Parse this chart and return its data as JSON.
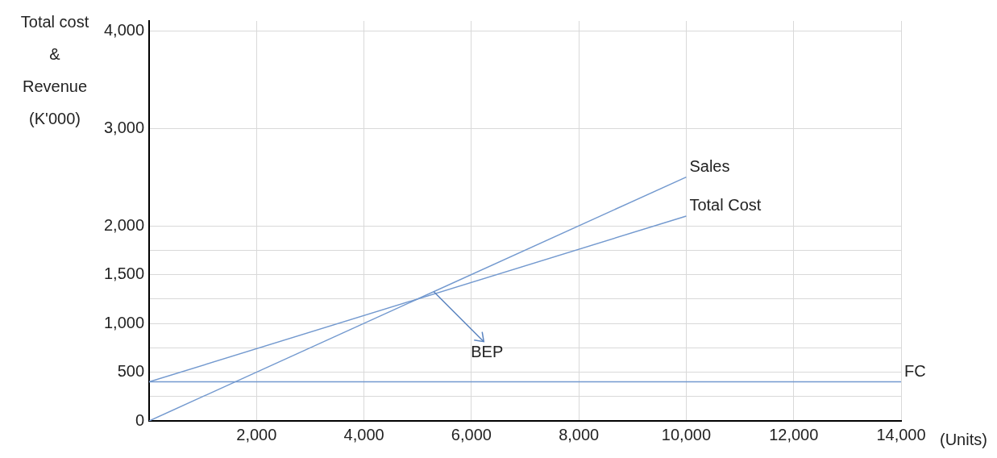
{
  "chart_data": {
    "type": "line",
    "ylabel": "Total cost\n&\nRevenue\n(K'000)",
    "xlabel": "(Units)",
    "xlim": [
      0,
      14000
    ],
    "xticks": [
      {
        "value": 0,
        "label": null
      },
      {
        "value": 2000,
        "label": "2,000"
      },
      {
        "value": 4000,
        "label": "4,000"
      },
      {
        "value": 6000,
        "label": "6,000"
      },
      {
        "value": 8000,
        "label": "8,000"
      },
      {
        "value": 10000,
        "label": "10,000"
      },
      {
        "value": 12000,
        "label": "12,000"
      },
      {
        "value": 14000,
        "label": "14,000"
      }
    ],
    "ylim": [
      0,
      4100
    ],
    "yticks": [
      0,
      {
        "value": 250,
        "label": null
      },
      500,
      {
        "value": 750,
        "label": null
      },
      {
        "value": 1000,
        "label": "1,000"
      },
      {
        "value": 1250,
        "label": null
      },
      {
        "value": 1500,
        "label": "1,500"
      },
      {
        "value": 1750,
        "label": null
      },
      {
        "value": 2000,
        "label": "2,000"
      },
      {
        "value": 3000,
        "label": "3,000"
      },
      {
        "value": 4000,
        "label": "4,000"
      }
    ],
    "grid": true,
    "legend": false,
    "marker": "none",
    "line_style": "solid",
    "series": [
      {
        "name": "Sales",
        "color": "#7399cf",
        "x": [
          0,
          10000
        ],
        "values": [
          0,
          2500
        ]
      },
      {
        "name": "Total Cost",
        "color": "#7399cf",
        "x": [
          0,
          10000
        ],
        "values": [
          400,
          2100
        ]
      },
      {
        "name": "FC",
        "color": "#7399cf",
        "x": [
          0,
          14000
        ],
        "values": [
          400,
          400
        ]
      }
    ],
    "annotations": [
      {
        "text": "BEP",
        "x": 5300,
        "y": 1325
      }
    ]
  }
}
